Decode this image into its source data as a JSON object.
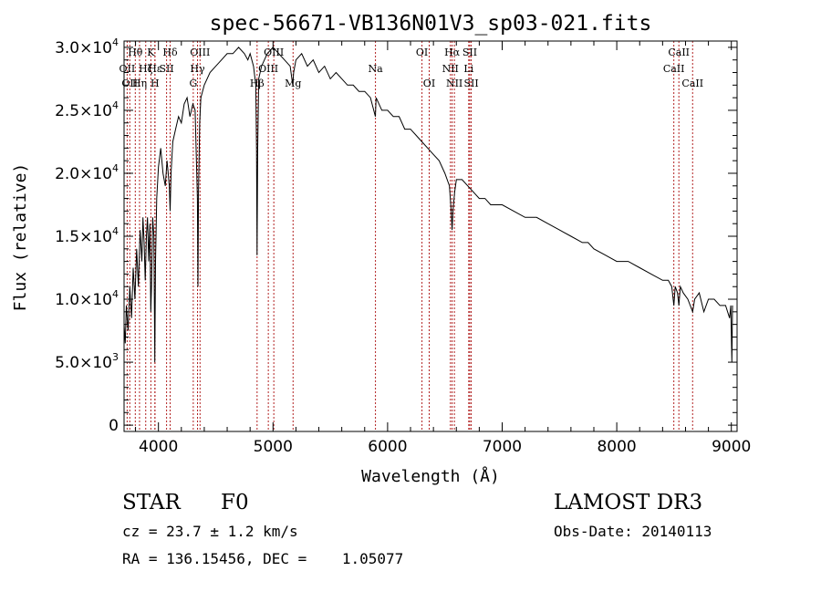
{
  "chart_data": {
    "type": "line",
    "title": "spec-56671-VB136N01V3_sp03-021.fits",
    "xlabel": "Wavelength (Å)",
    "ylabel": "Flux (relative)",
    "xlim": [
      3700,
      9050
    ],
    "ylim": [
      -500,
      30500
    ],
    "x_ticks": [
      {
        "value": 4000,
        "label": "4000"
      },
      {
        "value": 5000,
        "label": "5000"
      },
      {
        "value": 6000,
        "label": "6000"
      },
      {
        "value": 7000,
        "label": "7000"
      },
      {
        "value": 8000,
        "label": "8000"
      },
      {
        "value": 9000,
        "label": "9000"
      }
    ],
    "y_ticks": [
      {
        "value": 0,
        "mant": "0",
        "exp": ""
      },
      {
        "value": 5000,
        "mant": "5.0×10",
        "exp": "3"
      },
      {
        "value": 10000,
        "mant": "1.0×10",
        "exp": "4"
      },
      {
        "value": 15000,
        "mant": "1.5×10",
        "exp": "4"
      },
      {
        "value": 20000,
        "mant": "2.0×10",
        "exp": "4"
      },
      {
        "value": 25000,
        "mant": "2.5×10",
        "exp": "4"
      },
      {
        "value": 30000,
        "mant": "3.0×10",
        "exp": "4"
      }
    ],
    "grid": false,
    "legend": "none",
    "line_color": "#000000",
    "marker_color": "#b22222",
    "series": [
      {
        "x": [
          3700,
          3710,
          3720,
          3735,
          3750,
          3765,
          3780,
          3795,
          3810,
          3825,
          3840,
          3855,
          3865,
          3875,
          3885,
          3895,
          3905,
          3915,
          3925,
          3933,
          3940,
          3950,
          3960,
          3968,
          3975,
          3985,
          4000,
          4020,
          4040,
          4060,
          4075,
          4085,
          4095,
          4102,
          4110,
          4125,
          4150,
          4175,
          4200,
          4225,
          4250,
          4275,
          4300,
          4320,
          4340,
          4345,
          4350,
          4360,
          4370,
          4400,
          4450,
          4500,
          4550,
          4600,
          4650,
          4700,
          4750,
          4780,
          4800,
          4830,
          4850,
          4856,
          4861,
          4866,
          4875,
          4900,
          4950,
          5000,
          5050,
          5100,
          5150,
          5172,
          5180,
          5200,
          5250,
          5300,
          5350,
          5400,
          5450,
          5500,
          5550,
          5600,
          5650,
          5700,
          5750,
          5800,
          5850,
          5893,
          5900,
          5950,
          6000,
          6050,
          6100,
          6150,
          6200,
          6250,
          6300,
          6350,
          6400,
          6450,
          6500,
          6540,
          6555,
          6563,
          6570,
          6585,
          6600,
          6650,
          6700,
          6750,
          6800,
          6850,
          6900,
          6950,
          7000,
          7100,
          7200,
          7300,
          7400,
          7500,
          7600,
          7700,
          7750,
          7800,
          7900,
          8000,
          8100,
          8200,
          8300,
          8400,
          8450,
          8480,
          8498,
          8510,
          8530,
          8542,
          8555,
          8580,
          8620,
          8662,
          8680,
          8720,
          8760,
          8800,
          8850,
          8900,
          8950,
          8985,
          8995,
          9005,
          9010
        ],
        "y": [
          8000,
          6500,
          9500,
          7500,
          11000,
          8500,
          12500,
          10000,
          14000,
          11000,
          15500,
          13000,
          16500,
          14500,
          11500,
          15000,
          16500,
          13000,
          16000,
          9000,
          11000,
          16500,
          15000,
          5000,
          13000,
          18000,
          20500,
          22000,
          20000,
          19000,
          21000,
          20000,
          19000,
          17000,
          20000,
          22500,
          23500,
          24500,
          24000,
          25500,
          26000,
          24500,
          25500,
          25000,
          18000,
          11000,
          18500,
          24000,
          26000,
          27000,
          28000,
          28500,
          29000,
          29500,
          29500,
          30000,
          29500,
          29000,
          29500,
          28500,
          27000,
          22000,
          13500,
          22000,
          27500,
          28500,
          29500,
          30000,
          29500,
          29000,
          28500,
          27000,
          28000,
          29000,
          29500,
          28500,
          29000,
          28000,
          28500,
          27500,
          28000,
          27500,
          27000,
          27000,
          26500,
          26500,
          26000,
          24500,
          26000,
          25000,
          25000,
          24500,
          24500,
          23500,
          23500,
          23000,
          22500,
          22000,
          21500,
          21000,
          20000,
          19000,
          17000,
          15500,
          17000,
          18500,
          19500,
          19500,
          19000,
          18500,
          18000,
          18000,
          17500,
          17500,
          17500,
          17000,
          16500,
          16500,
          16000,
          15500,
          15000,
          14500,
          14500,
          14000,
          13500,
          13000,
          13000,
          12500,
          12000,
          11500,
          11500,
          11000,
          9500,
          11000,
          10500,
          9500,
          11000,
          10500,
          10000,
          9000,
          10000,
          10500,
          9000,
          10000,
          10000,
          9500,
          9500,
          8500,
          9500,
          5000,
          9500
        ],
        "scale_note": "flux"
      }
    ],
    "line_markers": [
      {
        "x": 3727,
        "label": "OII",
        "row": 1
      },
      {
        "x": 3750,
        "label": "OII",
        "row": 2
      },
      {
        "x": 3798,
        "label": "Hθ",
        "row": 0
      },
      {
        "x": 3835,
        "label": "Hη",
        "row": 2
      },
      {
        "x": 3889,
        "label": "Hζ",
        "row": 1
      },
      {
        "x": 3934,
        "label": "K",
        "row": 0
      },
      {
        "x": 3969,
        "label": "H",
        "row": 2
      },
      {
        "x": 3970,
        "label": "Hε",
        "row": 1
      },
      {
        "x": 4071,
        "label": "SII",
        "row": 1
      },
      {
        "x": 4102,
        "label": "Hδ",
        "row": 0
      },
      {
        "x": 4304,
        "label": "G",
        "row": 2
      },
      {
        "x": 4341,
        "label": "Hγ",
        "row": 1
      },
      {
        "x": 4363,
        "label": "OIII",
        "row": 0
      },
      {
        "x": 4861,
        "label": "Hβ",
        "row": 2
      },
      {
        "x": 4959,
        "label": "OIII",
        "row": 1
      },
      {
        "x": 5007,
        "label": "OIII",
        "row": 0
      },
      {
        "x": 5175,
        "label": "Mg",
        "row": 2
      },
      {
        "x": 5894,
        "label": "Na",
        "row": 1
      },
      {
        "x": 6300,
        "label": "OI",
        "row": 0
      },
      {
        "x": 6363,
        "label": "OI",
        "row": 2
      },
      {
        "x": 6548,
        "label": "NII",
        "row": 1
      },
      {
        "x": 6563,
        "label": "Hα",
        "row": 0
      },
      {
        "x": 6583,
        "label": "NII",
        "row": 2
      },
      {
        "x": 6708,
        "label": "Li",
        "row": 1
      },
      {
        "x": 6717,
        "label": "SII",
        "row": 0
      },
      {
        "x": 6730,
        "label": "SII",
        "row": 2
      },
      {
        "x": 8498,
        "label": "CaII",
        "row": 1
      },
      {
        "x": 8542,
        "label": "CaII",
        "row": 0
      },
      {
        "x": 8662,
        "label": "CaII",
        "row": 2
      }
    ]
  },
  "info": {
    "class_label": "STAR",
    "subclass": "F0",
    "survey": "LAMOST DR3",
    "redshift_text": "cz = 23.7 ± 1.2 km/s",
    "obs_date_text": "Obs-Date: 20140113",
    "coords_text": "RA = 136.15456, DEC =    1.05077"
  }
}
